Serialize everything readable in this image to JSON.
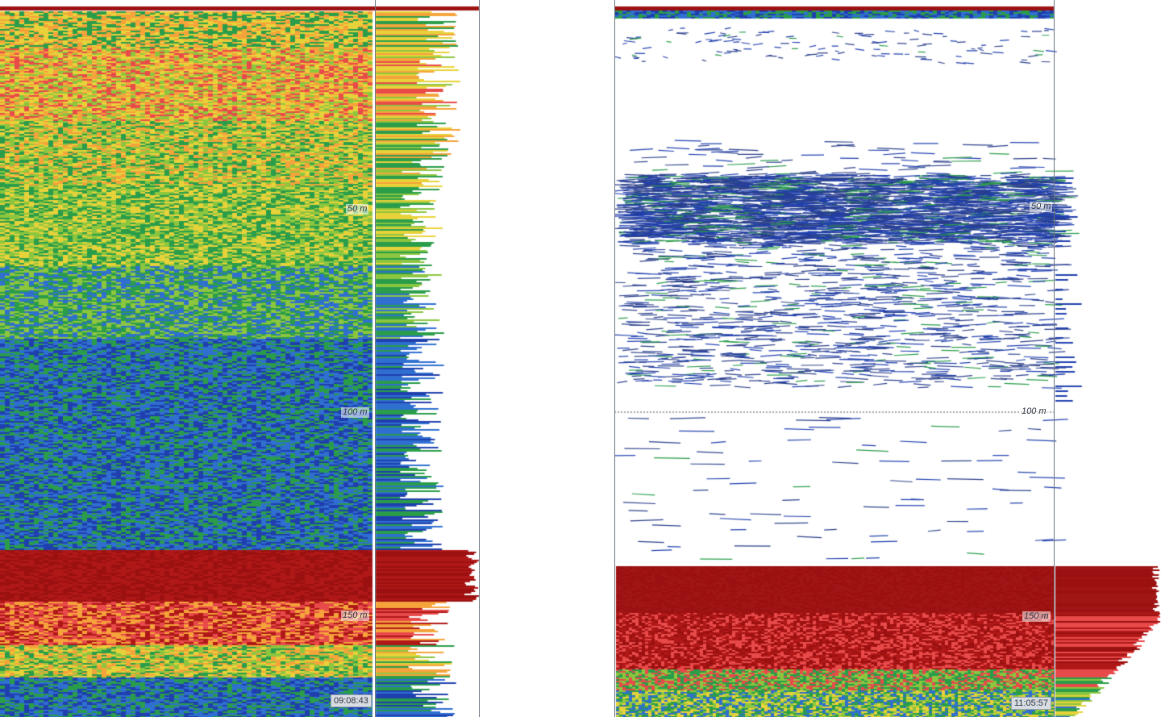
{
  "panels": [
    {
      "id": "left",
      "depth_labels": [
        "50 m",
        "100 m",
        "150 m"
      ],
      "timestamp": "09:08:43",
      "seabed_depth_m": 136,
      "max_depth_m": 175
    },
    {
      "id": "right",
      "depth_labels": [
        "50 m",
        "100 m",
        "150 m"
      ],
      "timestamp": "11:05:57",
      "seabed_depth_m": 139,
      "max_depth_m": 175
    }
  ],
  "colors": {
    "seabed": "#9b1010",
    "axis_line": "#6b7480",
    "scale": [
      "#1f3fae",
      "#2f6fd0",
      "#2a9d4a",
      "#8cc63f",
      "#e8d23a",
      "#f5a33a",
      "#e84a4a",
      "#b01818"
    ]
  },
  "icons": []
}
